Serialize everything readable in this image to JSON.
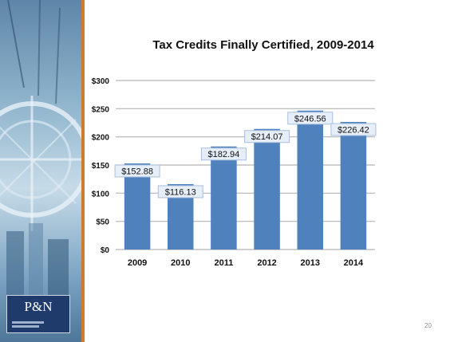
{
  "slide": {
    "page_number": "20",
    "logo_text": "P&N"
  },
  "chart_data": {
    "type": "bar",
    "title": "Tax Credits Finally Certified, 2009-2014",
    "categories": [
      "2009",
      "2010",
      "2011",
      "2012",
      "2013",
      "2014"
    ],
    "values": [
      152.88,
      116.13,
      182.94,
      214.07,
      246.56,
      226.42
    ],
    "data_labels": [
      "$152.88",
      "$116.13",
      "$182.94",
      "$214.07",
      "$246.56",
      "$226.42"
    ],
    "y_ticks": [
      0,
      50,
      100,
      150,
      200,
      250,
      300
    ],
    "y_tick_labels": [
      "$0",
      "$50",
      "$100",
      "$150",
      "$200",
      "$250",
      "$300"
    ],
    "ylim": [
      0,
      300
    ],
    "xlabel": "",
    "ylabel": "",
    "grid": true,
    "legend": "none",
    "bar_color": "#4f81bd"
  }
}
